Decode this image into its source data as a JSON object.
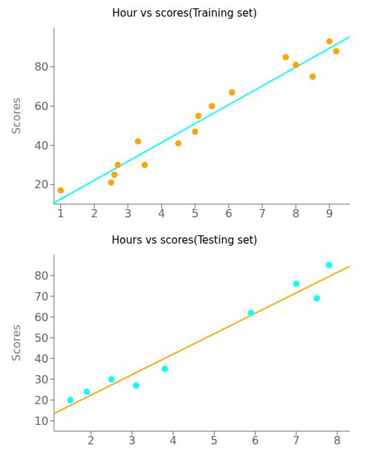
{
  "chart_data": [
    {
      "type": "scatter",
      "title": "Hour vs scores(Training set)",
      "y_label": "Scores",
      "xlim": [
        0.8,
        9.6
      ],
      "ylim": [
        10,
        100
      ],
      "xticks": [
        1,
        2,
        3,
        4,
        5,
        6,
        7,
        8,
        9
      ],
      "yticks": [
        20,
        40,
        60,
        80
      ],
      "grid": false,
      "series": [
        {
          "type": "line",
          "color": "#00FFFF",
          "x": [
            0.8,
            9.6
          ],
          "values": [
            10.61,
            95.312
          ]
        },
        {
          "type": "scatter",
          "color": "#FFA500",
          "x": [
            1.0,
            2.5,
            2.6,
            2.7,
            3.3,
            3.5,
            4.5,
            5.0,
            5.1,
            5.5,
            6.1,
            7.7,
            8.0,
            8.5,
            9.0,
            9.2
          ],
          "values": [
            17,
            21,
            25,
            30,
            42,
            30,
            41,
            47,
            55,
            60,
            67,
            85,
            81,
            75,
            93,
            88
          ]
        }
      ]
    },
    {
      "type": "scatter",
      "title": "Hours vs scores(Testing set)",
      "y_label": "Scores",
      "xlim": [
        1.1,
        8.3
      ],
      "ylim": [
        5,
        90
      ],
      "xticks": [
        2,
        3,
        4,
        5,
        6,
        7,
        8
      ],
      "yticks": [
        10,
        20,
        30,
        40,
        50,
        60,
        70,
        80
      ],
      "grid": false,
      "series": [
        {
          "type": "line",
          "color": "#FFA500",
          "x": [
            1.1,
            8.3
          ],
          "values": [
            13.481,
            84.479
          ]
        },
        {
          "type": "scatter",
          "color": "#00FFFF",
          "x": [
            1.5,
            1.9,
            2.5,
            3.1,
            3.8,
            5.9,
            7.0,
            7.5,
            7.8
          ],
          "values": [
            20,
            24,
            30,
            27,
            35,
            62,
            76,
            69,
            85
          ]
        }
      ]
    }
  ]
}
